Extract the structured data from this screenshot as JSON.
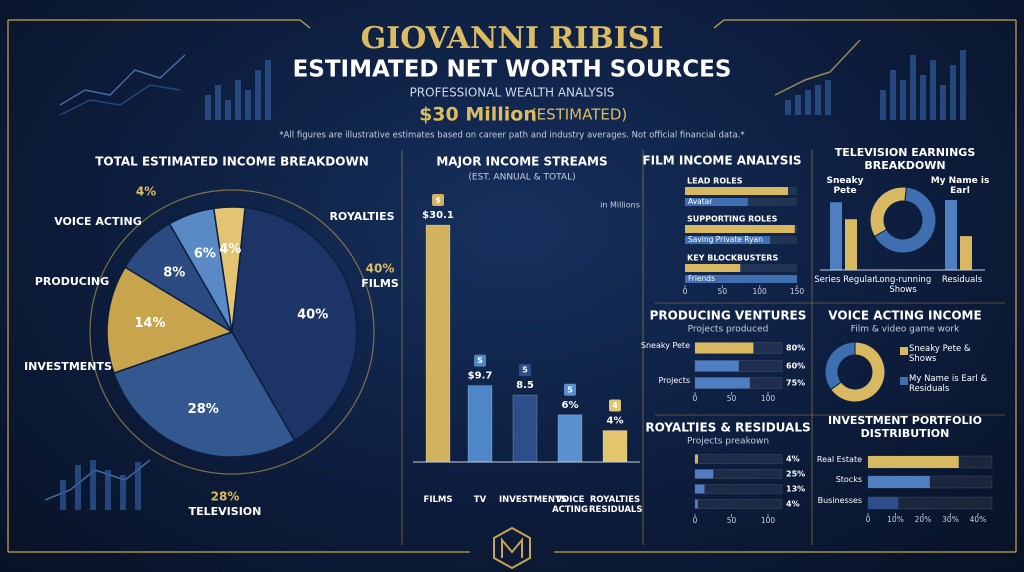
{
  "header": {
    "title": "GIOVANNI RIBISI",
    "subtitle": "ESTIMATED NET WORTH SOURCES",
    "tagline": "PROFESSIONAL WEALTH ANALYSIS",
    "net_worth": "$30 Million",
    "net_worth_note": "(ESTIMATED)",
    "disclaimer": "*All figures are illustrative estimates based on career path and industry averages. Not official financial data.*"
  },
  "chart_data": [
    {
      "type": "pie",
      "title": "TOTAL ESTIMATED INCOME BREAKDOWN",
      "categories": [
        "FILMS",
        "TELEVISION",
        "INVESTMENTS",
        "PRODUCING",
        "VOICE ACTING",
        "ROYALTIES"
      ],
      "values": [
        40,
        28,
        14,
        8,
        6,
        4
      ],
      "value_labels": [
        "40%",
        "28%",
        "14%",
        "8%",
        "6%",
        "4%"
      ],
      "colors": [
        "#1d3566",
        "#33578f",
        "#c8a54c",
        "#2c4a82",
        "#5a8ac6",
        "#e2c473"
      ]
    },
    {
      "type": "bar",
      "title": "MAJOR INCOME STREAMS",
      "subtitle": "(EST. ANNUAL & TOTAL)",
      "note": "in Millions",
      "categories": [
        "FILMS",
        "TV",
        "INVESTMENTS",
        "VOICE ACTING",
        "ROYALTIES RESIDUALS"
      ],
      "values": [
        30.1,
        9.7,
        8.5,
        6,
        4
      ],
      "value_labels": [
        "$30.1",
        "$9.7",
        "8.5",
        "6%",
        "4%"
      ],
      "badges": [
        "$",
        "S",
        "5",
        "5",
        "4"
      ],
      "colors": [
        "#d2b25c",
        "#4f86c8",
        "#2c4f8c",
        "#5a8fd0",
        "#e3c56e"
      ]
    },
    {
      "type": "hbar",
      "title": "FILM INCOME ANALYSIS",
      "categories": [
        "LEAD ROLES",
        "SUPPORTING ROLES",
        "KEY BLOCKBUSTERS"
      ],
      "sublabels": [
        "Avatar",
        "Saving Private Ryan",
        "Friends"
      ],
      "series": [
        {
          "color": "#d8b860",
          "values": [
            138,
            147,
            74
          ]
        },
        {
          "color": "#3f6fb0",
          "values": [
            84,
            114,
            150
          ]
        }
      ],
      "xlim": [
        0,
        150
      ],
      "xticks": [
        0,
        50,
        100,
        150
      ]
    },
    {
      "type": "bar",
      "title": "TELEVISION EARNINGS BREAKDOWN",
      "categories": [
        "Sneaky Pete",
        "My Name is Earl"
      ],
      "series": [
        {
          "color": "#4f7fc0",
          "values": [
            60,
            62
          ]
        },
        {
          "color": "#d8b860",
          "values": [
            45,
            30
          ]
        }
      ],
      "captions": [
        "Series Regular",
        "Long-running Shows",
        "Residuals"
      ]
    },
    {
      "type": "donut",
      "values": [
        35,
        65
      ],
      "colors": [
        "#d8b860",
        "#3f6fb0"
      ]
    },
    {
      "type": "hbar",
      "title": "PRODUCING VENTURES",
      "subtitle": "Projects produced",
      "categories": [
        "Sneaky Pete",
        null,
        "Projects"
      ],
      "values": [
        80,
        60,
        75
      ],
      "value_labels": [
        "80%",
        "60%",
        "75%"
      ],
      "colors": [
        "#d8b860",
        "#4f7fc0",
        "#4f7fc0"
      ],
      "xlim": [
        0,
        100
      ],
      "xticks": [
        0,
        50,
        100
      ]
    },
    {
      "type": "donut",
      "title": "VOICE ACTING INCOME",
      "subtitle": "Film & video game work",
      "categories": [
        "Sneaky Pete & Shows",
        "My Name is Earl & Residuals"
      ],
      "values": [
        65,
        35
      ],
      "colors": [
        "#d8b860",
        "#3f6fb0"
      ]
    },
    {
      "type": "hbar",
      "title": "ROYALTIES & RESIDUALS",
      "subtitle": "Projects preakown",
      "categories": [
        null,
        null,
        null,
        null
      ],
      "values": [
        4,
        25,
        13,
        4
      ],
      "value_labels": [
        "4%",
        "25%",
        "13%",
        "4%"
      ],
      "colors": [
        "#d8b860",
        "#4f7fc0",
        "#4f7fc0",
        "#4f7fc0"
      ],
      "xlim": [
        0,
        100
      ],
      "xticks": [
        0,
        50,
        100
      ]
    },
    {
      "type": "hbar",
      "title": "INVESTMENT PORTFOLIO DISTRIBUTION",
      "categories": [
        "Real Estate",
        "Stocks",
        "Businesses"
      ],
      "values": [
        33,
        22.5,
        11
      ],
      "colors": [
        "#d8b860",
        "#4f7fc0",
        "#2c4f8c"
      ],
      "xlim": [
        0,
        40
      ],
      "xticks": [
        0,
        {
          "value": 10,
          "label": "10%"
        },
        {
          "value": 20,
          "label": "20%"
        },
        {
          "value": 30,
          "label": "30%"
        },
        {
          "value": 40,
          "label": "40%"
        }
      ]
    }
  ]
}
